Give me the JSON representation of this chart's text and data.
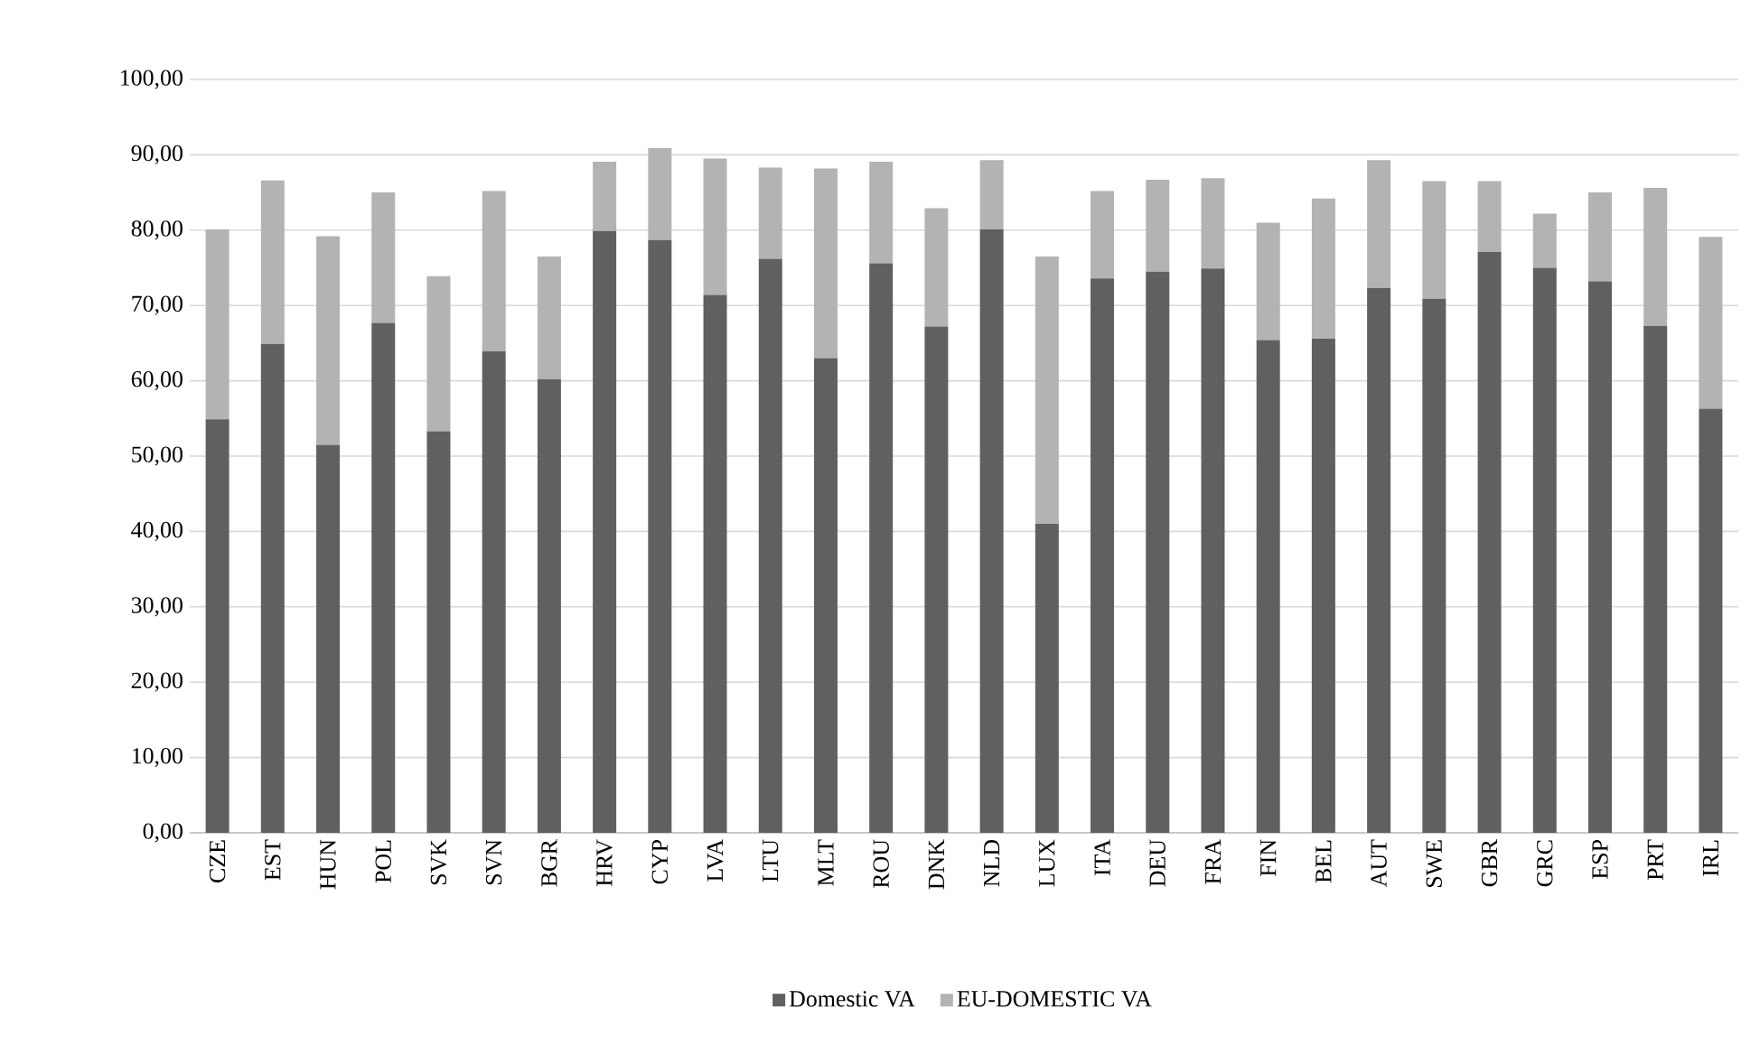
{
  "chart_data": {
    "type": "bar",
    "stacked": true,
    "categories": [
      "CZE",
      "EST",
      "HUN",
      "POL",
      "SVK",
      "SVN",
      "BGR",
      "HRV",
      "CYP",
      "LVA",
      "LTU",
      "MLT",
      "ROU",
      "DNK",
      "NLD",
      "LUX",
      "ITA",
      "DEU",
      "FRA",
      "FIN",
      "BEL",
      "AUT",
      "SWE",
      "GBR",
      "GRC",
      "ESP",
      "PRT",
      "IRL"
    ],
    "series": [
      {
        "name": "Domestic VA",
        "color": "#606060",
        "values": [
          54.9,
          64.9,
          51.5,
          67.7,
          53.3,
          63.9,
          60.2,
          79.9,
          78.7,
          71.4,
          76.2,
          63.0,
          75.6,
          67.2,
          80.1,
          41.0,
          73.6,
          74.5,
          74.9,
          65.4,
          65.6,
          72.3,
          70.9,
          77.1,
          75.0,
          73.2,
          67.3,
          56.3
        ]
      },
      {
        "name": "EU-DOMESTIC VA",
        "color": "#b3b3b3",
        "values": [
          25.2,
          21.7,
          27.7,
          17.3,
          20.6,
          21.3,
          16.3,
          9.2,
          12.2,
          18.1,
          12.1,
          25.2,
          13.5,
          15.7,
          9.2,
          35.5,
          11.6,
          12.2,
          12.0,
          15.6,
          18.6,
          17.0,
          15.6,
          9.4,
          7.2,
          11.8,
          18.3,
          22.8
        ]
      }
    ],
    "ylim": [
      0,
      100
    ],
    "yticks": [
      {
        "value": 0,
        "label": "0,00"
      },
      {
        "value": 10,
        "label": "10,00"
      },
      {
        "value": 20,
        "label": "20,00"
      },
      {
        "value": 30,
        "label": "30,00"
      },
      {
        "value": 40,
        "label": "40,00"
      },
      {
        "value": 50,
        "label": "50,00"
      },
      {
        "value": 60,
        "label": "60,00"
      },
      {
        "value": 70,
        "label": "70,00"
      },
      {
        "value": 80,
        "label": "80,00"
      },
      {
        "value": 90,
        "label": "90,00"
      },
      {
        "value": 100,
        "label": "100,00"
      }
    ],
    "grid": "y",
    "legend": "bottom"
  }
}
